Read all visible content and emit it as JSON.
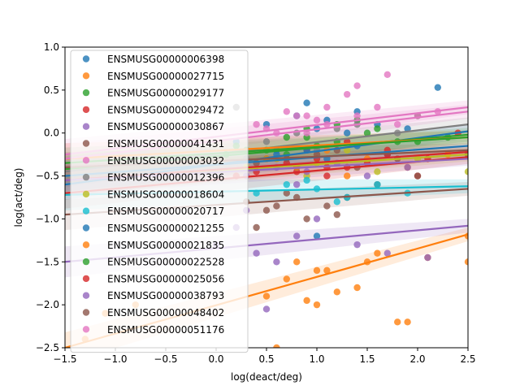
{
  "chart_data": {
    "type": "scatter",
    "xlabel": "log(deact/deg)",
    "ylabel": "log(act/deg)",
    "xlim": [
      -1.5,
      2.5
    ],
    "ylim": [
      -2.5,
      1.0
    ],
    "xticks": [
      -1.5,
      -1.0,
      -0.5,
      0.0,
      0.5,
      1.0,
      1.5,
      2.0,
      2.5
    ],
    "xtick_labels": [
      "−1.5",
      "−1.0",
      "−0.5",
      "0.0",
      "0.5",
      "1.0",
      "1.5",
      "2.0",
      "2.5"
    ],
    "yticks": [
      -2.5,
      -2.0,
      -1.5,
      -1.0,
      -0.5,
      0.0,
      0.5,
      1.0
    ],
    "ytick_labels": [
      "−2.5",
      "−2.0",
      "−1.5",
      "−1.0",
      "−0.5",
      "0.0",
      "0.5",
      "1.0"
    ],
    "legend_position": "upper-left",
    "grid": false,
    "series": [
      {
        "name": "ENSMUSG00000006398",
        "color": "#1f77b4",
        "trend": [
          [
            -1.5,
            -0.6
          ],
          [
            2.5,
            0.02
          ]
        ],
        "points": [
          [
            0.2,
            -0.1
          ],
          [
            0.5,
            0.1
          ],
          [
            0.8,
            0.2
          ],
          [
            0.9,
            0.35
          ],
          [
            1.1,
            0.15
          ],
          [
            1.3,
            0.0
          ],
          [
            1.6,
            0.1
          ],
          [
            1.9,
            0.05
          ],
          [
            2.2,
            0.53
          ],
          [
            0.6,
            -0.2
          ],
          [
            1.0,
            0.05
          ],
          [
            1.4,
            0.25
          ]
        ]
      },
      {
        "name": "ENSMUSG00000027715",
        "color": "#ff7f0e",
        "trend": [
          [
            -1.5,
            -2.5
          ],
          [
            2.5,
            -1.18
          ]
        ],
        "points": [
          [
            -1.3,
            -2.4
          ],
          [
            -1.1,
            -2.1
          ],
          [
            -0.8,
            -2.0
          ],
          [
            0.5,
            -1.9
          ],
          [
            0.7,
            -1.7
          ],
          [
            0.9,
            -1.95
          ],
          [
            1.0,
            -2.0
          ],
          [
            1.1,
            -1.6
          ],
          [
            1.2,
            -1.85
          ],
          [
            1.4,
            -1.8
          ],
          [
            1.6,
            -1.4
          ],
          [
            1.8,
            -2.2
          ],
          [
            1.9,
            -2.2
          ],
          [
            2.1,
            -1.45
          ],
          [
            2.5,
            -1.2
          ],
          [
            2.5,
            -1.5
          ],
          [
            0.6,
            -2.5
          ],
          [
            1.5,
            -1.5
          ],
          [
            0.8,
            -1.5
          ],
          [
            1.0,
            -1.6
          ]
        ]
      },
      {
        "name": "ENSMUSG00000029177",
        "color": "#2ca02c",
        "trend": [
          [
            -1.5,
            -0.42
          ],
          [
            2.5,
            -0.02
          ]
        ],
        "points": [
          [
            0.3,
            -0.2
          ],
          [
            0.7,
            -0.05
          ],
          [
            0.9,
            0.05
          ],
          [
            1.2,
            0.1
          ],
          [
            1.5,
            0.0
          ],
          [
            1.8,
            -0.1
          ],
          [
            2.0,
            0.2
          ],
          [
            0.5,
            -0.3
          ],
          [
            1.0,
            -0.15
          ],
          [
            1.4,
            0.15
          ],
          [
            2.3,
            -0.05
          ],
          [
            0.1,
            -0.25
          ]
        ]
      },
      {
        "name": "ENSMUSG00000029472",
        "color": "#d62728",
        "trend": [
          [
            -1.5,
            -0.7
          ],
          [
            2.5,
            -0.28
          ]
        ],
        "points": [
          [
            0.2,
            -0.5
          ],
          [
            0.6,
            -0.3
          ],
          [
            0.9,
            -0.2
          ],
          [
            1.1,
            -0.4
          ],
          [
            1.3,
            -0.1
          ],
          [
            1.7,
            -0.2
          ],
          [
            2.0,
            -0.5
          ],
          [
            2.4,
            0.0
          ],
          [
            0.8,
            -0.45
          ],
          [
            1.5,
            -0.35
          ]
        ]
      },
      {
        "name": "ENSMUSG00000030867",
        "color": "#9467bd",
        "trend": [
          [
            -1.5,
            -1.5
          ],
          [
            2.5,
            -1.08
          ]
        ],
        "points": [
          [
            0.0,
            -1.3
          ],
          [
            0.2,
            -1.1
          ],
          [
            0.4,
            -1.4
          ],
          [
            0.6,
            -1.5
          ],
          [
            0.8,
            -1.2
          ],
          [
            1.0,
            -1.0
          ],
          [
            1.4,
            -1.3
          ],
          [
            1.7,
            -1.4
          ],
          [
            2.1,
            -1.45
          ],
          [
            0.5,
            -2.05
          ],
          [
            0.3,
            -0.9
          ]
        ]
      },
      {
        "name": "ENSMUSG00000041431",
        "color": "#8c564b",
        "trend": [
          [
            -1.5,
            -0.95
          ],
          [
            2.5,
            -0.65
          ]
        ],
        "points": [
          [
            0.3,
            -0.8
          ],
          [
            0.5,
            -0.9
          ],
          [
            0.7,
            -0.7
          ],
          [
            0.9,
            -1.0
          ],
          [
            1.1,
            -0.85
          ],
          [
            1.3,
            -0.75
          ],
          [
            1.6,
            -0.6
          ],
          [
            2.0,
            -0.5
          ],
          [
            0.4,
            -1.1
          ],
          [
            0.8,
            -0.75
          ],
          [
            1.2,
            -0.95
          ],
          [
            0.6,
            -0.85
          ]
        ]
      },
      {
        "name": "ENSMUSG00000003032",
        "color": "#e377c2",
        "trend": [
          [
            -1.5,
            -0.25
          ],
          [
            2.5,
            0.3
          ]
        ],
        "points": [
          [
            0.4,
            0.1
          ],
          [
            0.7,
            0.25
          ],
          [
            0.9,
            0.2
          ],
          [
            1.1,
            0.3
          ],
          [
            1.3,
            0.45
          ],
          [
            1.7,
            0.68
          ],
          [
            1.4,
            0.55
          ],
          [
            2.0,
            0.2
          ],
          [
            0.6,
            0.0
          ],
          [
            1.0,
            0.15
          ]
        ]
      },
      {
        "name": "ENSMUSG00000012396",
        "color": "#7f7f7f",
        "trend": [
          [
            -1.5,
            -0.45
          ],
          [
            2.5,
            0.1
          ]
        ],
        "points": [
          [
            0.2,
            0.3
          ],
          [
            0.5,
            -0.1
          ],
          [
            0.8,
            0.0
          ],
          [
            1.0,
            -0.2
          ],
          [
            1.4,
            0.1
          ],
          [
            1.8,
            0.0
          ],
          [
            0.3,
            -0.3
          ],
          [
            1.2,
            0.05
          ]
        ]
      },
      {
        "name": "ENSMUSG00000018604",
        "color": "#bcbd22",
        "trend": [
          [
            -1.5,
            -0.55
          ],
          [
            2.5,
            -0.25
          ]
        ],
        "points": [
          [
            0.3,
            -0.4
          ],
          [
            0.6,
            -0.3
          ],
          [
            1.0,
            -0.35
          ],
          [
            1.3,
            -0.2
          ],
          [
            1.6,
            -0.45
          ],
          [
            2.0,
            -0.3
          ],
          [
            2.5,
            -0.45
          ],
          [
            0.9,
            -0.5
          ]
        ]
      },
      {
        "name": "ENSMUSG00000020717",
        "color": "#17becf",
        "trend": [
          [
            -1.5,
            -0.72
          ],
          [
            2.5,
            -0.62
          ]
        ],
        "points": [
          [
            0.4,
            -0.7
          ],
          [
            0.7,
            -0.6
          ],
          [
            1.0,
            -0.65
          ],
          [
            1.3,
            -0.75
          ],
          [
            1.6,
            -0.6
          ],
          [
            1.9,
            -0.7
          ],
          [
            0.9,
            -0.55
          ],
          [
            1.2,
            -0.8
          ]
        ]
      },
      {
        "name": "ENSMUSG00000021255",
        "color": "#1f77b4",
        "trend": [
          [
            -1.5,
            -0.5
          ],
          [
            2.5,
            -0.15
          ]
        ],
        "points": [
          [
            0.6,
            -0.25
          ],
          [
            0.9,
            -0.2
          ],
          [
            1.1,
            -0.3
          ],
          [
            1.4,
            -0.15
          ],
          [
            1.7,
            -0.25
          ],
          [
            1.0,
            -1.2
          ],
          [
            0.8,
            -0.4
          ]
        ]
      },
      {
        "name": "ENSMUSG00000021835",
        "color": "#ff7f0e",
        "trend": [
          [
            -1.5,
            -0.3
          ],
          [
            2.5,
            -0.05
          ]
        ],
        "points": [
          [
            0.5,
            -0.3
          ],
          [
            0.8,
            -0.4
          ],
          [
            1.1,
            -0.2
          ],
          [
            1.5,
            -0.3
          ],
          [
            1.9,
            -0.4
          ],
          [
            2.3,
            -0.25
          ],
          [
            1.3,
            -0.5
          ]
        ]
      },
      {
        "name": "ENSMUSG00000022528",
        "color": "#2ca02c",
        "trend": [
          [
            -1.5,
            -0.35
          ],
          [
            2.5,
            -0.05
          ]
        ],
        "points": [
          [
            0.2,
            -0.15
          ],
          [
            0.5,
            -0.2
          ],
          [
            0.9,
            -0.05
          ],
          [
            1.2,
            -0.1
          ],
          [
            1.6,
            0.05
          ],
          [
            2.0,
            -0.1
          ],
          [
            0.7,
            -0.25
          ]
        ]
      },
      {
        "name": "ENSMUSG00000025056",
        "color": "#d62728",
        "trend": [
          [
            -1.5,
            -0.55
          ],
          [
            2.5,
            -0.22
          ]
        ],
        "points": [
          [
            0.4,
            -0.45
          ],
          [
            0.7,
            -0.35
          ],
          [
            1.0,
            -0.3
          ],
          [
            1.3,
            -0.4
          ],
          [
            1.7,
            -0.25
          ],
          [
            2.1,
            -0.3
          ],
          [
            1.1,
            -0.5
          ]
        ]
      },
      {
        "name": "ENSMUSG00000038793",
        "color": "#9467bd",
        "trend": [
          [
            -1.5,
            -0.55
          ],
          [
            2.5,
            -0.3
          ]
        ],
        "points": [
          [
            0.3,
            -0.5
          ],
          [
            0.6,
            -0.4
          ],
          [
            0.9,
            -0.45
          ],
          [
            1.2,
            -0.35
          ],
          [
            1.5,
            -0.5
          ],
          [
            1.9,
            -0.4
          ],
          [
            0.8,
            -0.6
          ]
        ]
      },
      {
        "name": "ENSMUSG00000048402",
        "color": "#8c564b",
        "trend": [
          [
            -1.5,
            -0.4
          ],
          [
            2.5,
            -0.2
          ]
        ],
        "points": [
          [
            0.4,
            -0.35
          ],
          [
            0.7,
            -0.3
          ],
          [
            1.0,
            -0.25
          ],
          [
            1.4,
            -0.4
          ],
          [
            1.8,
            -0.3
          ],
          [
            2.5,
            -0.25
          ],
          [
            1.2,
            -0.2
          ]
        ]
      },
      {
        "name": "ENSMUSG00000051176",
        "color": "#e377c2",
        "trend": [
          [
            -1.5,
            -0.3
          ],
          [
            2.5,
            0.25
          ]
        ],
        "points": [
          [
            0.5,
            0.05
          ],
          [
            0.8,
            0.2
          ],
          [
            1.1,
            0.1
          ],
          [
            1.4,
            0.2
          ],
          [
            1.8,
            0.1
          ],
          [
            2.2,
            0.25
          ],
          [
            0.9,
            0.0
          ],
          [
            1.6,
            0.3
          ]
        ]
      }
    ]
  }
}
